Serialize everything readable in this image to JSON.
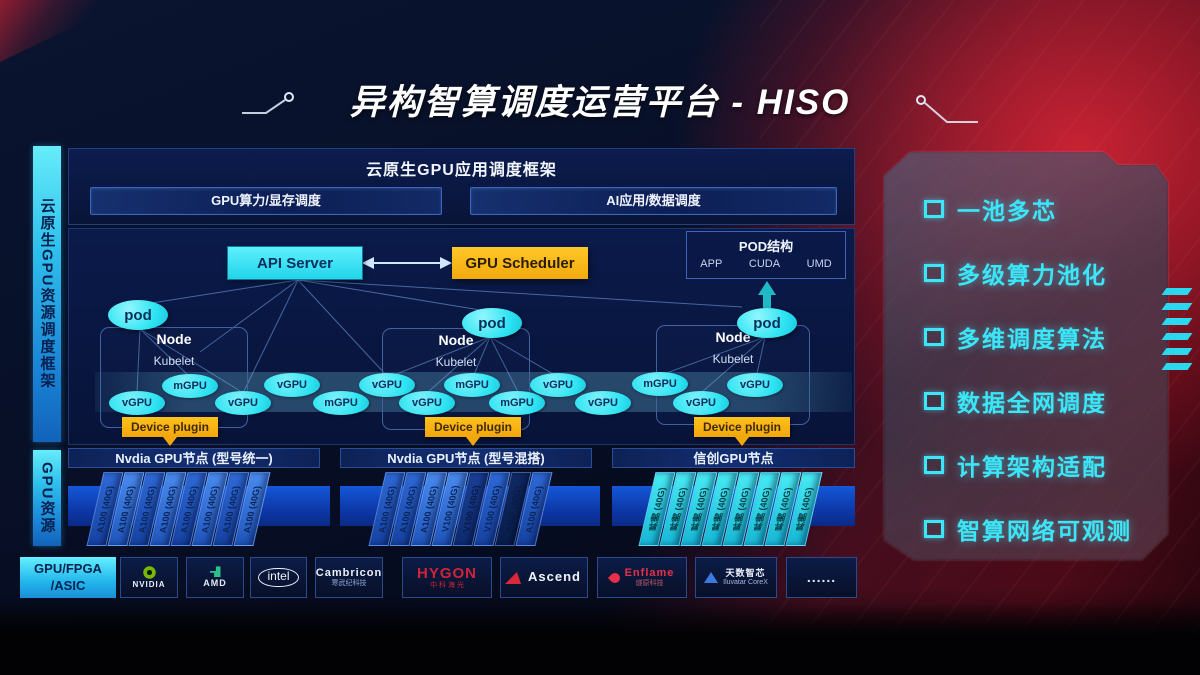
{
  "title": "异构智算调度运营平台 - HISO",
  "sidebar": {
    "cloud_native_label": "云原生GPU资源调度框架",
    "gpu_resource_label": "GPU资源"
  },
  "app_framework": {
    "header": "云原生GPU应用调度框架",
    "compute_scheduling": "GPU算力/显存调度",
    "ai_data_scheduling": "AI应用/数据调度"
  },
  "control_plane": {
    "api_server": "API Server",
    "gpu_scheduler": "GPU Scheduler"
  },
  "pod_structure": {
    "title": "POD结构",
    "layers": [
      "APP",
      "CUDA",
      "UMD"
    ]
  },
  "node_groups": [
    {
      "pod_label": "pod",
      "node_label": "Node",
      "kubelet_label": "Kubelet",
      "device_plugin_label": "Device plugin"
    },
    {
      "pod_label": "pod",
      "node_label": "Node",
      "kubelet_label": "Kubelet",
      "device_plugin_label": "Device plugin"
    },
    {
      "pod_label": "pod",
      "node_label": "Node",
      "kubelet_label": "Kubelet",
      "device_plugin_label": "Device plugin"
    }
  ],
  "gpu_ellipses": [
    "vGPU",
    "mGPU",
    "vGPU",
    "vGPU",
    "mGPU",
    "vGPU",
    "vGPU",
    "mGPU",
    "mGPU",
    "vGPU",
    "vGPU",
    "mGPU",
    "vGPU",
    "vGPU"
  ],
  "gpu_node_groups": [
    {
      "label": "Nvdia GPU节点 (型号统一)",
      "cards": [
        "A100 (40G)",
        "A100 (40G)",
        "A100 (40G)",
        "A100 (40G)",
        "A100 (40G)",
        "A100 (40G)",
        "A100 (40G)",
        "A100 (40G)"
      ]
    },
    {
      "label": "Nvdia GPU节点 (型号混搭)",
      "cards": [
        "A100 (40G)",
        "A100 (40G)",
        "A100 (40G)",
        "V100 (40G)",
        "V100 (40G)",
        "V100 (40G)",
        "A100 (40G)",
        "A100 (40G)"
      ]
    },
    {
      "label": "信创GPU节点",
      "cards": [
        "昇腾 (40G)",
        "昇腾 (40G)",
        "昇腾 (40G)",
        "昇腾 (40G)",
        "昇腾 (40G)",
        "昇腾 (40G)",
        "昇腾 (40G)",
        "昇腾 (40G)"
      ]
    }
  ],
  "hardware_bar": {
    "category": {
      "line1": "GPU/FPGA",
      "line2": "/ASIC"
    },
    "vendors": [
      {
        "name": "NVIDIA",
        "mark": "nvidia",
        "color": "#e9eef8",
        "size": 8
      },
      {
        "name": "AMD",
        "mark": "amd",
        "color": "#e2ecf4",
        "size": 9
      },
      {
        "name": "intel",
        "oval": true,
        "color": "#f2f6fb",
        "size": 12
      },
      {
        "name": "Cambricon",
        "sub": "寒武纪科技",
        "color": "#eaeff8",
        "subColor": "#8fa8d8",
        "size": 11
      },
      {
        "name": "HYGON",
        "sub": "中 科 海 光",
        "color": "#cf2438",
        "subColor": "#cf2438",
        "size": 15
      },
      {
        "name": "Ascend",
        "mark": "ascend",
        "color": "#f0f4fa",
        "layout": "row",
        "size": 13
      },
      {
        "name": "Enflame",
        "sub": "燧原科技",
        "mark": "flame",
        "color": "#e83048",
        "subColor": "#c05a68",
        "layout": "row",
        "size": 11
      },
      {
        "name": "天数智芯",
        "sub": "Iluvatar CoreX",
        "mark": "iluvatar",
        "color": "#eaeff8",
        "subColor": "#a8b8d8",
        "layout": "row",
        "size": 9
      },
      {
        "name": "......",
        "color": "#dfe8f5",
        "size": 14
      }
    ]
  },
  "features": {
    "items": [
      "一池多芯",
      "多级算力池化",
      "多维调度算法",
      "数据全网调度",
      "计算架构适配",
      "智算网络可观测"
    ]
  },
  "colors": {
    "cyan_accent": "#2ee4f2",
    "orange_accent": "#f6b517",
    "feature_cyan": "#3ae6f8",
    "red_accent": "#c01830",
    "nvidia_green": "#76b900",
    "card_blue": "#2f6ad8",
    "card_cyan": "#49ecf5"
  }
}
